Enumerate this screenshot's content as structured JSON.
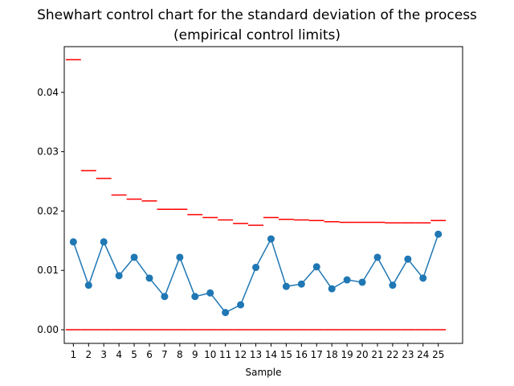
{
  "chart_data": {
    "type": "line",
    "title_line1": "Shewhart control chart for the standard deviation of the process",
    "title_line2": "(empirical control limits)",
    "xlabel": "Sample",
    "ylabel": "",
    "grid": false,
    "xlim": [
      -0.6,
      25.6
    ],
    "ylim": [
      -0.0023,
      0.0477
    ],
    "yticks": [
      0.0,
      0.01,
      0.02,
      0.03,
      0.04
    ],
    "ytick_labels": [
      "0.00",
      "0.01",
      "0.02",
      "0.03",
      "0.04"
    ],
    "categories": [
      "1",
      "2",
      "3",
      "4",
      "5",
      "6",
      "7",
      "8",
      "9",
      "10",
      "11",
      "12",
      "13",
      "14",
      "15",
      "16",
      "17",
      "18",
      "19",
      "20",
      "21",
      "22",
      "23",
      "24",
      "25"
    ],
    "colors": {
      "series": "#1f77b4",
      "limits": "#ff0000",
      "axes": "#000000"
    },
    "series": [
      {
        "values": [
          0.0148,
          0.0075,
          0.0148,
          0.0091,
          0.0122,
          0.0087,
          0.0056,
          0.0122,
          0.0056,
          0.0062,
          0.0029,
          0.0042,
          0.0105,
          0.0153,
          0.0073,
          0.0077,
          0.0106,
          0.0069,
          0.0084,
          0.008,
          0.0122,
          0.0075,
          0.0119,
          0.0087,
          0.0161
        ]
      }
    ],
    "upper_limits": [
      0.0455,
      0.0268,
      0.0255,
      0.0227,
      0.022,
      0.0217,
      0.0203,
      0.0203,
      0.0194,
      0.0189,
      0.0185,
      0.0179,
      0.0176,
      0.0189,
      0.0186,
      0.0185,
      0.0184,
      0.0182,
      0.0181,
      0.0181,
      0.0181,
      0.018,
      0.018,
      0.018,
      0.0184
    ],
    "lower_limits": [
      0,
      0,
      0,
      0,
      0,
      0,
      0,
      0,
      0,
      0,
      0,
      0,
      0,
      0,
      0,
      0,
      0,
      0,
      0,
      0,
      0,
      0,
      0,
      0,
      0
    ]
  }
}
